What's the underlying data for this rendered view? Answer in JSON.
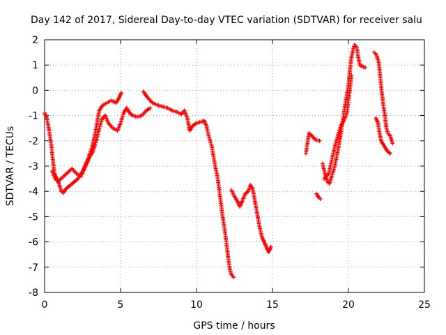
{
  "chart_data": {
    "type": "scatter",
    "title": "Day 142 of 2017, Sidereal Day-to-day VTEC variation (SDTVAR) for receiver salu",
    "xlabel": "GPS time / hours",
    "ylabel": "SDTVAR / TECUs",
    "xlim": [
      0,
      25
    ],
    "ylim": [
      -8,
      2
    ],
    "xticks": [
      0,
      5,
      10,
      15,
      20,
      25
    ],
    "yticks": [
      -8,
      -7,
      -6,
      -5,
      -4,
      -3,
      -2,
      -1,
      0,
      1,
      2
    ],
    "grid": true,
    "marker": "plus",
    "color": "#ff0000",
    "series": [
      {
        "points": [
          [
            0.0,
            -0.9
          ],
          [
            0.15,
            -1.1
          ],
          [
            0.3,
            -1.6
          ],
          [
            0.45,
            -2.2
          ],
          [
            0.55,
            -2.8
          ],
          [
            0.65,
            -3.3
          ],
          [
            0.8,
            -3.5
          ],
          [
            0.95,
            -3.7
          ],
          [
            1.1,
            -4.0
          ],
          [
            1.25,
            -4.05
          ],
          [
            1.4,
            -3.9
          ],
          [
            1.6,
            -3.8
          ],
          [
            1.9,
            -3.65
          ],
          [
            2.2,
            -3.5
          ],
          [
            2.5,
            -3.2
          ],
          [
            2.8,
            -2.8
          ],
          [
            3.1,
            -2.3
          ],
          [
            3.3,
            -1.8
          ],
          [
            3.45,
            -1.3
          ],
          [
            3.6,
            -0.8
          ],
          [
            3.8,
            -0.6
          ],
          [
            4.1,
            -0.5
          ],
          [
            4.4,
            -0.4
          ],
          [
            4.7,
            -0.5
          ],
          [
            4.9,
            -0.3
          ],
          [
            5.05,
            -0.1
          ]
        ]
      },
      {
        "points": [
          [
            0.5,
            -3.2
          ],
          [
            0.7,
            -3.5
          ],
          [
            0.9,
            -3.6
          ],
          [
            1.8,
            -3.1
          ],
          [
            2.1,
            -3.3
          ],
          [
            2.4,
            -3.4
          ],
          [
            2.7,
            -3.0
          ],
          [
            3.0,
            -2.6
          ],
          [
            3.2,
            -2.4
          ],
          [
            3.4,
            -2.0
          ],
          [
            3.6,
            -1.5
          ],
          [
            3.8,
            -1.1
          ],
          [
            4.0,
            -1.0
          ],
          [
            4.2,
            -1.3
          ],
          [
            4.5,
            -1.5
          ],
          [
            4.8,
            -1.6
          ],
          [
            5.0,
            -1.3
          ],
          [
            5.2,
            -0.9
          ],
          [
            5.4,
            -0.7
          ],
          [
            5.6,
            -0.9
          ],
          [
            5.8,
            -1.0
          ],
          [
            6.1,
            -1.05
          ],
          [
            6.4,
            -1.0
          ],
          [
            6.7,
            -0.8
          ],
          [
            6.95,
            -0.7
          ]
        ]
      },
      {
        "points": [
          [
            6.5,
            -0.05
          ],
          [
            6.8,
            -0.3
          ],
          [
            7.1,
            -0.5
          ],
          [
            7.5,
            -0.6
          ],
          [
            7.8,
            -0.65
          ],
          [
            8.1,
            -0.7
          ],
          [
            8.4,
            -0.8
          ],
          [
            8.7,
            -0.85
          ],
          [
            9.0,
            -0.95
          ],
          [
            9.2,
            -0.8
          ],
          [
            9.4,
            -1.1
          ],
          [
            9.55,
            -1.6
          ],
          [
            9.75,
            -1.4
          ],
          [
            10.0,
            -1.3
          ],
          [
            10.3,
            -1.25
          ],
          [
            10.5,
            -1.2
          ],
          [
            10.65,
            -1.4
          ],
          [
            10.8,
            -1.8
          ],
          [
            11.0,
            -2.2
          ],
          [
            11.2,
            -2.9
          ],
          [
            11.4,
            -3.5
          ],
          [
            11.55,
            -4.2
          ],
          [
            11.7,
            -4.9
          ],
          [
            11.85,
            -5.5
          ],
          [
            12.0,
            -6.2
          ],
          [
            12.1,
            -6.7
          ],
          [
            12.2,
            -7.1
          ],
          [
            12.3,
            -7.3
          ],
          [
            12.45,
            -7.4
          ]
        ]
      },
      {
        "points": [
          [
            12.3,
            -3.95
          ],
          [
            12.5,
            -4.2
          ],
          [
            12.7,
            -4.4
          ],
          [
            12.85,
            -4.6
          ],
          [
            13.0,
            -4.4
          ],
          [
            13.2,
            -4.1
          ],
          [
            13.4,
            -4.0
          ],
          [
            13.55,
            -3.75
          ],
          [
            13.7,
            -3.9
          ],
          [
            13.85,
            -4.4
          ],
          [
            14.0,
            -4.9
          ],
          [
            14.15,
            -5.4
          ],
          [
            14.3,
            -5.8
          ],
          [
            14.45,
            -6.0
          ],
          [
            14.6,
            -6.2
          ],
          [
            14.75,
            -6.4
          ],
          [
            14.9,
            -6.2
          ]
        ]
      },
      {
        "points": [
          [
            17.2,
            -2.5
          ],
          [
            17.3,
            -2.1
          ],
          [
            17.4,
            -1.7
          ],
          [
            17.6,
            -1.8
          ],
          [
            17.8,
            -1.95
          ],
          [
            18.1,
            -2.0
          ]
        ]
      },
      {
        "points": [
          [
            17.9,
            -4.1
          ],
          [
            18.0,
            -4.2
          ],
          [
            18.15,
            -4.3
          ]
        ]
      },
      {
        "points": [
          [
            18.3,
            -2.9
          ],
          [
            18.45,
            -3.3
          ],
          [
            18.6,
            -3.6
          ],
          [
            18.75,
            -3.7
          ],
          [
            18.9,
            -3.4
          ],
          [
            19.1,
            -3.0
          ],
          [
            19.3,
            -2.4
          ],
          [
            19.45,
            -1.9
          ],
          [
            19.6,
            -1.3
          ],
          [
            19.8,
            -0.5
          ],
          [
            20.0,
            0.2
          ],
          [
            20.1,
            0.8
          ],
          [
            20.2,
            1.3
          ],
          [
            20.3,
            1.6
          ],
          [
            20.4,
            1.8
          ],
          [
            20.55,
            1.7
          ],
          [
            20.65,
            1.3
          ],
          [
            20.75,
            1.0
          ],
          [
            20.9,
            0.95
          ],
          [
            21.1,
            0.9
          ]
        ]
      },
      {
        "points": [
          [
            18.4,
            -3.5
          ],
          [
            18.7,
            -3.3
          ],
          [
            19.0,
            -2.5
          ],
          [
            19.2,
            -2.0
          ],
          [
            19.5,
            -1.4
          ],
          [
            19.7,
            -1.2
          ],
          [
            19.9,
            -0.9
          ],
          [
            20.05,
            -0.2
          ],
          [
            20.2,
            0.6
          ]
        ]
      },
      {
        "points": [
          [
            21.7,
            1.5
          ],
          [
            21.85,
            1.4
          ],
          [
            22.0,
            1.1
          ],
          [
            22.1,
            0.5
          ],
          [
            22.2,
            -0.1
          ],
          [
            22.3,
            -0.6
          ],
          [
            22.4,
            -1.0
          ],
          [
            22.5,
            -1.5
          ],
          [
            22.6,
            -1.7
          ],
          [
            22.75,
            -1.8
          ],
          [
            22.9,
            -2.1
          ]
        ]
      },
      {
        "points": [
          [
            21.8,
            -1.1
          ],
          [
            21.95,
            -1.3
          ],
          [
            22.05,
            -1.7
          ],
          [
            22.15,
            -2.0
          ],
          [
            22.35,
            -2.2
          ],
          [
            22.55,
            -2.4
          ],
          [
            22.75,
            -2.5
          ]
        ]
      }
    ]
  }
}
